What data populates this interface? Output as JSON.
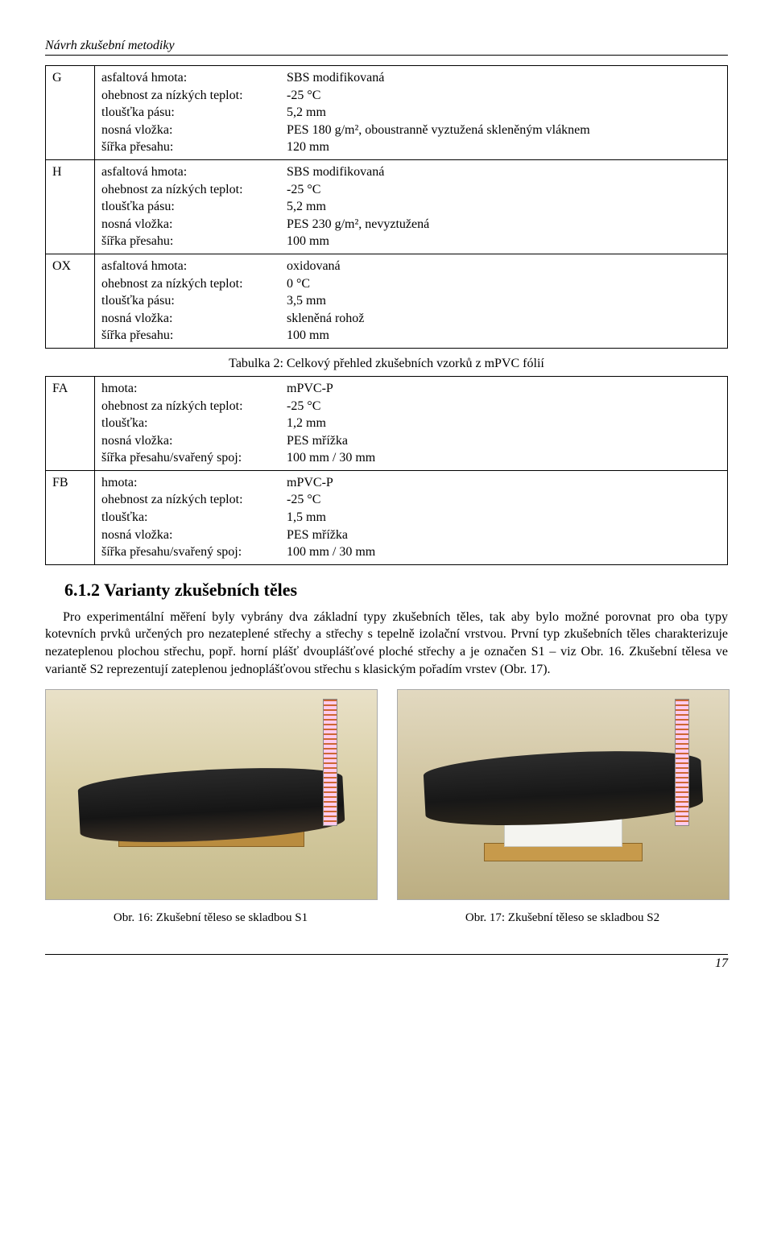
{
  "header": "Návrh zkušební metodiky",
  "table1": {
    "rows": [
      {
        "key": "G",
        "specs": [
          [
            "asfaltová hmota:",
            "SBS modifikovaná"
          ],
          [
            "ohebnost za nízkých teplot:",
            "-25 °C"
          ],
          [
            "tloušťka pásu:",
            "5,2 mm"
          ],
          [
            "nosná vložka:",
            "PES 180 g/m², oboustranně vyztužená skleněným vláknem"
          ],
          [
            "šířka přesahu:",
            "120 mm"
          ]
        ]
      },
      {
        "key": "H",
        "specs": [
          [
            "asfaltová hmota:",
            "SBS modifikovaná"
          ],
          [
            "ohebnost za nízkých teplot:",
            "-25 °C"
          ],
          [
            "tloušťka pásu:",
            "5,2 mm"
          ],
          [
            "nosná vložka:",
            "PES 230 g/m², nevyztužená"
          ],
          [
            "šířka přesahu:",
            "100 mm"
          ]
        ]
      },
      {
        "key": "OX",
        "specs": [
          [
            "asfaltová hmota:",
            "oxidovaná"
          ],
          [
            "ohebnost za nízkých teplot:",
            "0 °C"
          ],
          [
            "tloušťka pásu:",
            "3,5 mm"
          ],
          [
            "nosná vložka:",
            "skleněná rohož"
          ],
          [
            "šířka přesahu:",
            "100 mm"
          ]
        ]
      }
    ]
  },
  "table2_caption": "Tabulka 2: Celkový přehled zkušebních vzorků z mPVC fólií",
  "table2": {
    "rows": [
      {
        "key": "FA",
        "specs": [
          [
            "hmota:",
            "mPVC-P"
          ],
          [
            "ohebnost za nízkých teplot:",
            "-25 °C"
          ],
          [
            "tloušťka:",
            "1,2 mm"
          ],
          [
            "nosná vložka:",
            "PES mřížka"
          ],
          [
            "šířka přesahu/svařený spoj:",
            "100 mm / 30 mm"
          ]
        ]
      },
      {
        "key": "FB",
        "specs": [
          [
            "hmota:",
            "mPVC-P"
          ],
          [
            "ohebnost za nízkých teplot:",
            "-25 °C"
          ],
          [
            "tloušťka:",
            "1,5 mm"
          ],
          [
            "nosná vložka:",
            "PES mřížka"
          ],
          [
            "šířka přesahu/svařený spoj:",
            "100 mm / 30 mm"
          ]
        ]
      }
    ]
  },
  "section_heading": "6.1.2  Varianty zkušebních těles",
  "body_paragraph": "Pro experimentální měření byly vybrány dva základní typy zkušebních těles, tak aby bylo možné porovnat pro oba typy kotevních prvků určených pro nezateplené střechy a střechy s tepelně izolační vrstvou. První typ zkušebních těles charakterizuje nezateplenou plochou střechu, popř. horní plášť dvouplášťové ploché střechy a je označen S1 – viz Obr. 16. Zkušební tělesa ve variantě S2 reprezentují zateplenou jednoplášťovou střechu s klasickým pořadím vrstev (Obr. 17).",
  "fig1_caption": "Obr. 16: Zkušební těleso se skladbou S1",
  "fig2_caption": "Obr. 17: Zkušební těleso se skladbou S2",
  "page_number": "17"
}
